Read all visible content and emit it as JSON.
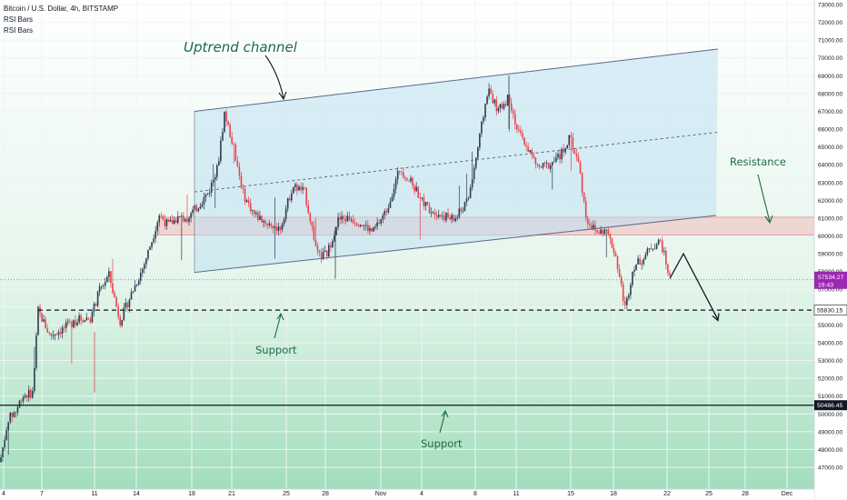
{
  "legend": {
    "symbol_line": "Bitcoin / U.S. Dollar, 4h, BITSTAMP",
    "indicator_1": "RSI Bars",
    "indicator_2": "RSI Bars"
  },
  "colors": {
    "up_candle": "#2d3b4f",
    "down_candle": "#e8424b",
    "channel_fill": "#bfe0f3",
    "resistance_fill": "#f0b9b9",
    "support_bg": "#9fdcb9",
    "annotation_text": "#1d6b43",
    "price_tag_purple": "#9c27b0"
  },
  "annotations": {
    "uptrend": "Uptrend channel",
    "resistance": "Resistance",
    "support_upper": "Support",
    "support_lower": "Support"
  },
  "price_tags": {
    "current_price": "57534.27",
    "countdown": "19:43",
    "support_upper_level": "55830.15",
    "support_lower_level": "50486.45"
  },
  "chart_data": {
    "type": "candlestick",
    "title": "Bitcoin / U.S. Dollar, 4h, BITSTAMP",
    "ylabel": "",
    "ylim": [
      46300,
      73500
    ],
    "x_ticks": [
      "4",
      "7",
      "11",
      "14",
      "18",
      "21",
      "25",
      "28",
      "Nov",
      "4",
      "8",
      "11",
      "15",
      "18",
      "22",
      "25",
      "28",
      "Dec"
    ],
    "y_ticks": [
      "47000.00",
      "48000.00",
      "49000.00",
      "50000.00",
      "51000.00",
      "52000.00",
      "53000.00",
      "54000.00",
      "55000.00",
      "56000.00",
      "57000.00",
      "58000.00",
      "59000.00",
      "60000.00",
      "61000.00",
      "62000.00",
      "63000.00",
      "64000.00",
      "65000.00",
      "66000.00",
      "67000.00",
      "68000.00",
      "69000.00",
      "70000.00",
      "71000.00",
      "72000.00",
      "73000.00"
    ],
    "price_path": [
      [
        0,
        47300
      ],
      [
        9,
        49700
      ],
      [
        18,
        50200
      ],
      [
        24,
        51000
      ],
      [
        30,
        51100
      ],
      [
        36,
        51200
      ],
      [
        42,
        55800
      ],
      [
        55,
        54400
      ],
      [
        70,
        54800
      ],
      [
        85,
        55300
      ],
      [
        100,
        55400
      ],
      [
        110,
        57000
      ],
      [
        120,
        57800
      ],
      [
        132,
        55200
      ],
      [
        145,
        56800
      ],
      [
        158,
        58300
      ],
      [
        168,
        59900
      ],
      [
        175,
        61200
      ],
      [
        185,
        60600
      ],
      [
        195,
        61000
      ],
      [
        205,
        61000
      ],
      [
        215,
        61500
      ],
      [
        230,
        62500
      ],
      [
        240,
        64000
      ],
      [
        247,
        66900
      ],
      [
        257,
        65000
      ],
      [
        268,
        62300
      ],
      [
        280,
        61200
      ],
      [
        295,
        60700
      ],
      [
        308,
        60400
      ],
      [
        322,
        62800
      ],
      [
        335,
        62500
      ],
      [
        350,
        58800
      ],
      [
        360,
        59000
      ],
      [
        372,
        60900
      ],
      [
        385,
        61000
      ],
      [
        398,
        60700
      ],
      [
        410,
        60200
      ],
      [
        425,
        61400
      ],
      [
        440,
        63800
      ],
      [
        455,
        62800
      ],
      [
        470,
        61600
      ],
      [
        485,
        61200
      ],
      [
        500,
        60900
      ],
      [
        515,
        62000
      ],
      [
        526,
        65000
      ],
      [
        537,
        68300
      ],
      [
        548,
        67000
      ],
      [
        560,
        67800
      ],
      [
        570,
        65800
      ],
      [
        580,
        65000
      ],
      [
        592,
        63800
      ],
      [
        605,
        64000
      ],
      [
        616,
        64500
      ],
      [
        627,
        65500
      ],
      [
        637,
        64000
      ],
      [
        645,
        61000
      ],
      [
        656,
        60200
      ],
      [
        667,
        60300
      ],
      [
        677,
        59000
      ],
      [
        688,
        55900
      ],
      [
        697,
        58300
      ],
      [
        707,
        58700
      ],
      [
        717,
        59400
      ],
      [
        727,
        59700
      ],
      [
        737,
        57600
      ]
    ],
    "channel": {
      "lower": [
        [
          214,
          57950
        ],
        [
          788,
          61150
        ]
      ],
      "upper": [
        [
          214,
          67000
        ],
        [
          790,
          70500
        ]
      ],
      "midline_dashed": true
    },
    "resistance_zone": [
      60050,
      61050
    ],
    "support_levels": [
      55830.15,
      50486.45
    ],
    "projection": [
      [
        737,
        57600
      ],
      [
        752,
        59000
      ],
      [
        790,
        55300
      ]
    ],
    "last_price": 57534.27
  }
}
